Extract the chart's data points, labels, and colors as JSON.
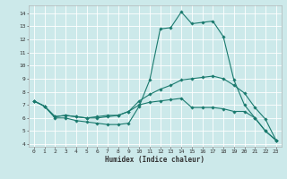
{
  "xlabel": "Humidex (Indice chaleur)",
  "bg_color": "#cce9ea",
  "grid_color": "#ffffff",
  "line_color": "#1a7a6e",
  "marker_color": "#1a7a6e",
  "xlim": [
    -0.5,
    23.5
  ],
  "ylim": [
    3.8,
    14.6
  ],
  "yticks": [
    4,
    5,
    6,
    7,
    8,
    9,
    10,
    11,
    12,
    13,
    14
  ],
  "xticks": [
    0,
    1,
    2,
    3,
    4,
    5,
    6,
    7,
    8,
    9,
    10,
    11,
    12,
    13,
    14,
    15,
    16,
    17,
    18,
    19,
    20,
    21,
    22,
    23
  ],
  "series1_x": [
    0,
    1,
    2,
    3,
    4,
    5,
    6,
    7,
    8,
    9,
    10,
    11,
    12,
    13,
    14,
    15,
    16,
    17,
    18,
    19,
    20,
    21,
    22,
    23
  ],
  "series1_y": [
    7.3,
    6.9,
    6.0,
    6.0,
    5.8,
    5.7,
    5.6,
    5.5,
    5.5,
    5.6,
    6.9,
    8.9,
    12.8,
    12.9,
    14.1,
    13.2,
    13.3,
    13.4,
    12.2,
    8.9,
    7.0,
    6.0,
    5.0,
    4.3
  ],
  "series2_x": [
    0,
    1,
    2,
    3,
    4,
    5,
    6,
    7,
    8,
    9,
    10,
    11,
    12,
    13,
    14,
    15,
    16,
    17,
    18,
    19,
    20,
    21,
    22,
    23
  ],
  "series2_y": [
    7.3,
    6.9,
    6.1,
    6.2,
    6.1,
    6.0,
    6.0,
    6.1,
    6.2,
    6.5,
    7.3,
    7.8,
    8.2,
    8.5,
    8.9,
    9.0,
    9.1,
    9.2,
    9.0,
    8.5,
    7.9,
    6.8,
    5.9,
    4.3
  ],
  "series3_x": [
    0,
    1,
    2,
    3,
    4,
    5,
    6,
    7,
    8,
    9,
    10,
    11,
    12,
    13,
    14,
    15,
    16,
    17,
    18,
    19,
    20,
    21,
    22,
    23
  ],
  "series3_y": [
    7.3,
    6.9,
    6.1,
    6.2,
    6.1,
    6.0,
    6.1,
    6.2,
    6.2,
    6.5,
    7.0,
    7.2,
    7.3,
    7.4,
    7.5,
    6.8,
    6.8,
    6.8,
    6.7,
    6.5,
    6.5,
    6.0,
    5.0,
    4.3
  ]
}
